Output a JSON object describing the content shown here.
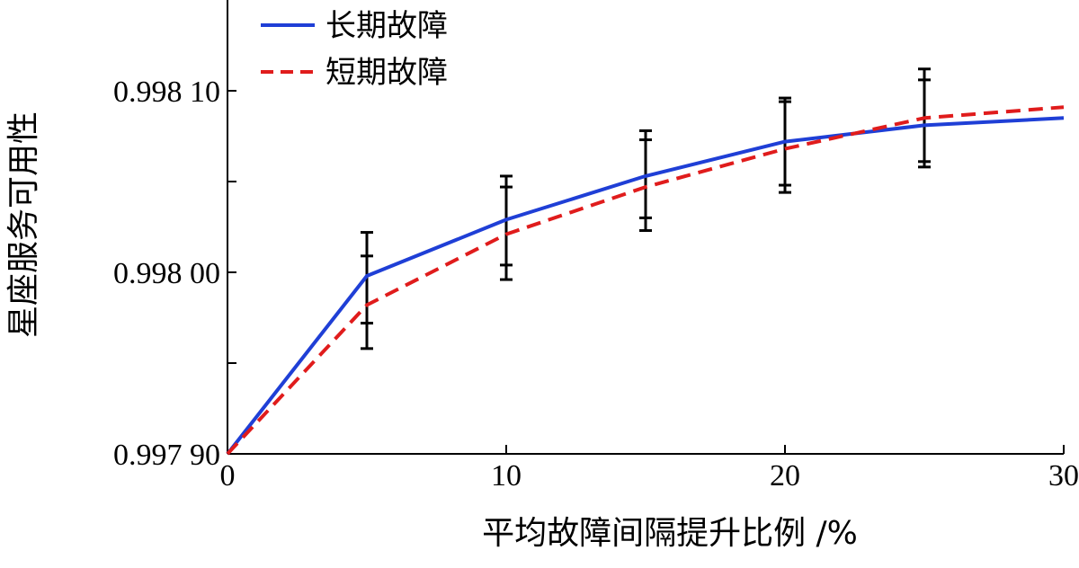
{
  "chart_data": {
    "type": "line",
    "title": "",
    "xlabel": "平均故障间隔提升比例 /%",
    "ylabel": "星座服务可用性",
    "xlim": [
      0,
      30
    ],
    "ylim": [
      0.9979,
      0.99815
    ],
    "x_ticks": [
      {
        "value": 0,
        "label": "0"
      },
      {
        "value": 10,
        "label": "10"
      },
      {
        "value": 20,
        "label": "20"
      },
      {
        "value": 30,
        "label": "30"
      }
    ],
    "y_ticks": [
      {
        "value": 0.9979,
        "label": "0.997 90"
      },
      {
        "value": 0.998,
        "label": "0.998 00"
      },
      {
        "value": 0.9981,
        "label": "0.998 10"
      }
    ],
    "y_minor_ticks": [
      0.99795,
      0.99805
    ],
    "grid": false,
    "legend_position": "top-left",
    "series": [
      {
        "name": "长期故障",
        "color": "#1f3fd6",
        "dash": "solid",
        "x": [
          0,
          5,
          10,
          15,
          20,
          25,
          30
        ],
        "values": [
          0.9979,
          0.997998,
          0.998029,
          0.998053,
          0.998072,
          0.998081,
          0.998085
        ]
      },
      {
        "name": "短期故障",
        "color": "#e01c1c",
        "dash": "dashed",
        "x": [
          0,
          5,
          10,
          15,
          20,
          25,
          30
        ],
        "values": [
          0.9979,
          0.997982,
          0.998021,
          0.998047,
          0.998068,
          0.998085,
          0.998091
        ]
      }
    ],
    "error_bars": [
      {
        "x": 5,
        "outer": [
          0.997958,
          0.998022
        ],
        "inner": [
          0.997972,
          0.998009
        ]
      },
      {
        "x": 10,
        "outer": [
          0.997996,
          0.998053
        ],
        "inner": [
          0.998004,
          0.998047
        ]
      },
      {
        "x": 15,
        "outer": [
          0.998023,
          0.998078
        ],
        "inner": [
          0.99803,
          0.998073
        ]
      },
      {
        "x": 20,
        "outer": [
          0.998044,
          0.998096
        ],
        "inner": [
          0.998048,
          0.998094
        ]
      },
      {
        "x": 25,
        "outer": [
          0.998058,
          0.998112
        ],
        "inner": [
          0.998061,
          0.998106
        ]
      }
    ]
  }
}
